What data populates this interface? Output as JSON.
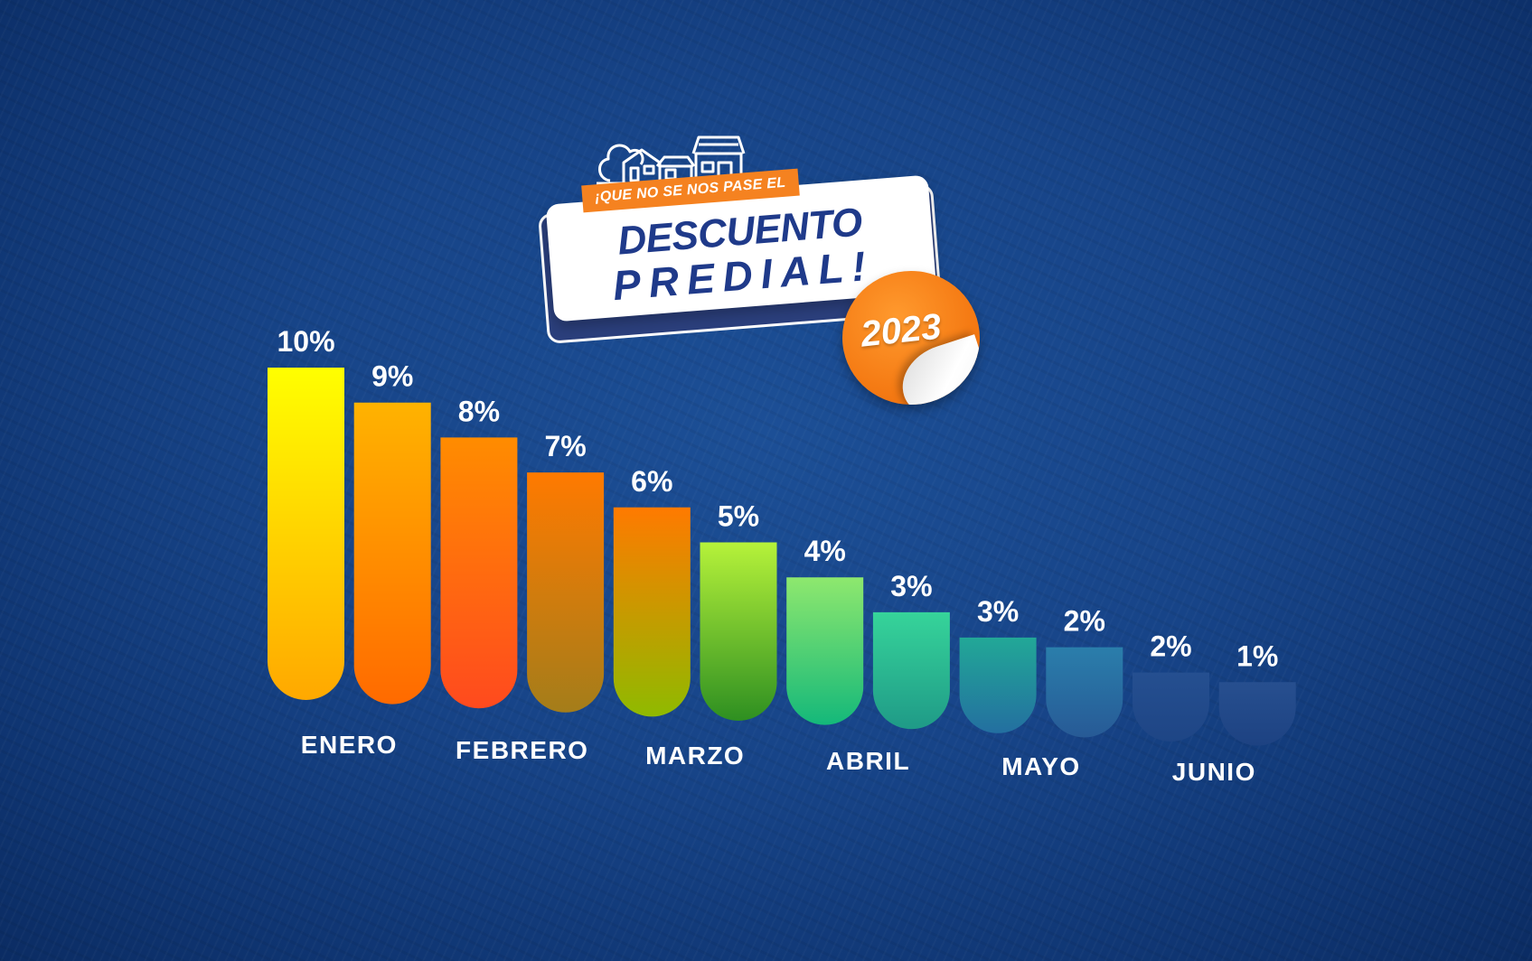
{
  "logo": {
    "tagline": "¡QUE NO SE NOS PASE EL",
    "title_line1": "DESCUENTO",
    "title_line2": "PREDIAL!",
    "year": "2023",
    "icons": [
      "houses-icon",
      "dollar-icon"
    ]
  },
  "chart_data": {
    "type": "bar",
    "values": [
      10,
      9,
      8,
      7,
      6,
      5,
      4,
      3,
      3,
      2,
      2,
      1
    ],
    "value_labels": [
      "10%",
      "9%",
      "8%",
      "7%",
      "6%",
      "5%",
      "4%",
      "3%",
      "3%",
      "2%",
      "2%",
      "1%"
    ],
    "month_labels": [
      "ENERO",
      "FEBRERO",
      "MARZO",
      "ABRIL",
      "MAYO",
      "JUNIO"
    ],
    "bars_per_month": 2,
    "colors": [
      [
        "#ffff00",
        "#ffa800"
      ],
      [
        "#ffb300",
        "#ff6a00"
      ],
      [
        "#ff8c00",
        "#ff4a1e"
      ],
      [
        "#ff7a00",
        "#a47d1a"
      ],
      [
        "#ff7a00",
        "#8fba00"
      ],
      [
        "#b6f23a",
        "#2e8f21"
      ],
      [
        "#8ee86e",
        "#14b87a"
      ],
      [
        "#36d49a",
        "#1f9a87"
      ],
      [
        "#22a897",
        "#236fa0"
      ],
      [
        "#2a7eab",
        "#275a96"
      ],
      [
        "#254f90",
        "#1e4585"
      ],
      [
        "#274f8f",
        "#1d4282"
      ]
    ]
  }
}
